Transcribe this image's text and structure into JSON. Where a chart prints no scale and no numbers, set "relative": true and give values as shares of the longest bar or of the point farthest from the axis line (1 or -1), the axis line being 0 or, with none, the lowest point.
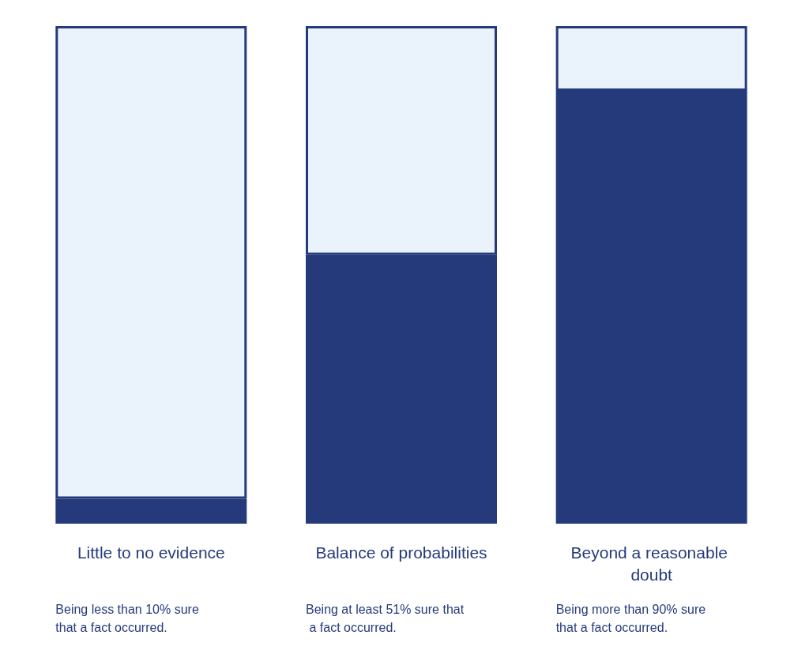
{
  "chart_data": {
    "type": "bar",
    "relative": true,
    "stacked": true,
    "categories": [
      "Little to no evidence",
      "Balance of probabilities",
      "Beyond a reasonable doubt"
    ],
    "series": [
      {
        "color": "#253a7a",
        "values": [
          0.05,
          0.54,
          0.87
        ]
      },
      {
        "color": "#eaf2fb",
        "values": [
          0.95,
          0.46,
          0.13
        ]
      }
    ],
    "annotations": [
      "Being less than 10% sure that a fact occurred.",
      "Being at least 51% sure that a fact occurred.",
      "Being more than 90% sure that a fact occurred."
    ]
  }
}
